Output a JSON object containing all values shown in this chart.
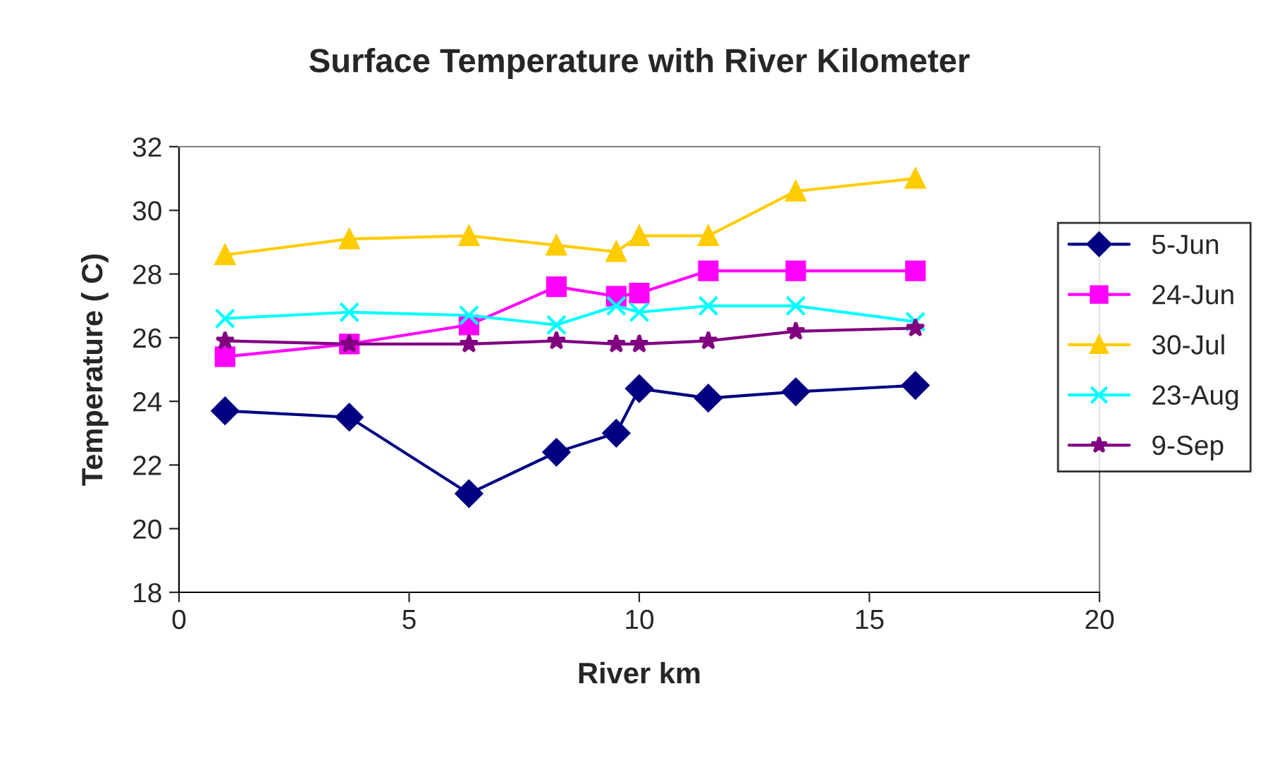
{
  "chart_data": {
    "type": "line",
    "title": "Surface Temperature with River Kilometer",
    "xlabel": "River km",
    "ylabel": "Temperature ( C)",
    "x": [
      1.0,
      3.7,
      6.3,
      8.2,
      9.5,
      10.0,
      11.5,
      13.4,
      16.0
    ],
    "xlim": [
      0,
      20
    ],
    "xticks": [
      0,
      5,
      10,
      15,
      20
    ],
    "ylim": [
      18,
      32
    ],
    "yticks": [
      18,
      20,
      22,
      24,
      26,
      28,
      30,
      32
    ],
    "grid": false,
    "legend": "right",
    "line_style": "solid",
    "series": [
      {
        "name": "5-Jun",
        "color": "#000080",
        "marker": "diamond",
        "values": [
          23.7,
          23.5,
          21.1,
          22.4,
          23.0,
          24.4,
          24.1,
          24.3,
          24.5
        ]
      },
      {
        "name": "24-Jun",
        "color": "#ff00ff",
        "marker": "square",
        "values": [
          25.4,
          25.8,
          26.4,
          27.6,
          27.3,
          27.4,
          28.1,
          28.1,
          28.1
        ]
      },
      {
        "name": "30-Jul",
        "color": "#ffcc00",
        "marker": "triangle",
        "values": [
          28.6,
          29.1,
          29.2,
          28.9,
          28.7,
          29.2,
          29.2,
          30.6,
          31.0
        ]
      },
      {
        "name": "23-Aug",
        "color": "#00ffff",
        "marker": "cross",
        "values": [
          26.6,
          26.8,
          26.7,
          26.4,
          27.0,
          26.8,
          27.0,
          27.0,
          26.5
        ]
      },
      {
        "name": "9-Sep",
        "color": "#800080",
        "marker": "star",
        "values": [
          25.9,
          25.8,
          25.8,
          25.9,
          25.8,
          25.8,
          25.9,
          26.2,
          26.3
        ]
      }
    ]
  }
}
